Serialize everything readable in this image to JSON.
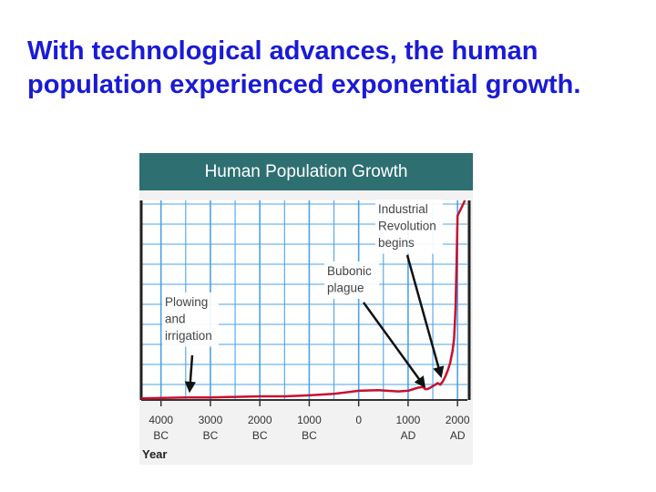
{
  "slide": {
    "title_line1": "With technological advances, the human",
    "title_line2": "population experienced exponential growth."
  },
  "colors": {
    "title": "#1a1ad6",
    "header_bg": "#2e6f72",
    "grid": "#4da3e6",
    "line": "#c8102e"
  },
  "chart_data": {
    "type": "line",
    "title": "Human Population Growth",
    "xlabel": "Year",
    "ylabel": "",
    "x_ticks": [
      {
        "value": -4000,
        "line1": "4000",
        "line2": "BC"
      },
      {
        "value": -3000,
        "line1": "3000",
        "line2": "BC"
      },
      {
        "value": -2000,
        "line1": "2000",
        "line2": "BC"
      },
      {
        "value": -1000,
        "line1": "1000",
        "line2": "BC"
      },
      {
        "value": 0,
        "line1": "0",
        "line2": ""
      },
      {
        "value": 1000,
        "line1": "1000",
        "line2": "AD"
      },
      {
        "value": 2000,
        "line1": "2000",
        "line2": "AD"
      }
    ],
    "xlim": [
      -4400,
      2200
    ],
    "ylim": [
      0,
      6.5
    ],
    "grid": true,
    "series": [
      {
        "x": [
          -4400,
          -3500,
          -3000,
          -2500,
          -2000,
          -1500,
          -1000,
          -500,
          0,
          400,
          800,
          1000,
          1200,
          1300,
          1350,
          1400,
          1450,
          1500,
          1600,
          1650,
          1700,
          1750,
          1800,
          1850,
          1900,
          1930,
          1960,
          1980,
          2000,
          2150
        ],
        "y": [
          0.05,
          0.08,
          0.08,
          0.1,
          0.12,
          0.12,
          0.15,
          0.2,
          0.3,
          0.32,
          0.28,
          0.3,
          0.4,
          0.42,
          0.35,
          0.36,
          0.4,
          0.45,
          0.55,
          0.5,
          0.6,
          0.75,
          0.95,
          1.2,
          1.6,
          2.0,
          3.0,
          4.4,
          6.0,
          6.6
        ]
      }
    ],
    "annotations": [
      {
        "lines": [
          "Plowing",
          "and",
          "irrigation"
        ],
        "x": -3400,
        "y": 0.1
      },
      {
        "lines": [
          "Bubonic",
          "plague"
        ],
        "x": 1350,
        "y": 0.45
      },
      {
        "lines": [
          "Industrial",
          "Revolution",
          "begins"
        ],
        "x": 1750,
        "y": 0.85
      }
    ]
  }
}
